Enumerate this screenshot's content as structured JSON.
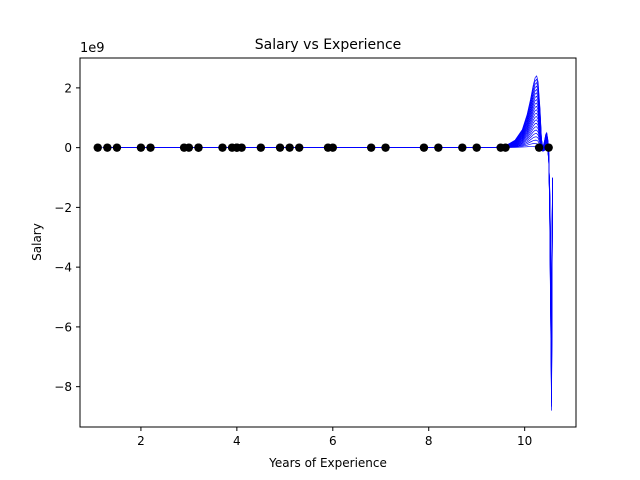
{
  "chart_data": {
    "type": "scatter",
    "title": "Salary vs Experience",
    "xlabel": "Years of Experience",
    "ylabel": "Salary",
    "y_offset_label": "1e9",
    "xlim": [
      0.73,
      11.07
    ],
    "ylim": [
      -9.35,
      3.0
    ],
    "xticks": [
      2,
      4,
      6,
      8,
      10
    ],
    "yticks": [
      2,
      0,
      -2,
      -4,
      -6,
      -8
    ],
    "ytick_labels": [
      "2",
      "0",
      "−2",
      "−4",
      "−6",
      "−8"
    ],
    "grid": false,
    "legend": "none",
    "colors": {
      "points": "#000000",
      "curves": "#0000ff"
    },
    "series": [
      {
        "kind": "points",
        "x": [
          1.1,
          1.3,
          1.5,
          2.0,
          2.2,
          2.9,
          3.0,
          3.2,
          3.2,
          3.7,
          3.9,
          4.0,
          4.0,
          4.1,
          4.5,
          4.9,
          5.1,
          5.3,
          5.9,
          6.0,
          6.8,
          7.1,
          7.9,
          8.2,
          8.7,
          9.0,
          9.5,
          9.6,
          10.3,
          10.5
        ],
        "y": [
          0,
          0,
          0,
          0,
          0,
          0,
          0,
          0,
          0,
          0,
          0,
          0,
          0,
          0,
          0,
          0,
          0,
          0,
          0,
          0,
          0,
          0,
          0,
          0,
          0,
          0,
          0,
          0,
          0,
          0
        ]
      },
      {
        "kind": "curve-family",
        "count": 22,
        "x": [
          1.2,
          9.4,
          9.6,
          9.8,
          9.95,
          10.05,
          10.12,
          10.18,
          10.22,
          10.25,
          10.28,
          10.32,
          10.35,
          10.38,
          10.41,
          10.44,
          10.46,
          10.48,
          10.5,
          10.52,
          10.54,
          10.56,
          10.58
        ],
        "envelope_max": [
          0,
          0.01,
          0.06,
          0.25,
          0.6,
          1.1,
          1.6,
          2.1,
          2.35,
          2.4,
          2.2,
          1.3,
          0.3,
          0,
          0.2,
          0.45,
          0.5,
          0.3,
          0,
          -2.0,
          -5.5,
          -8.8,
          -1.2
        ],
        "envelope_min": [
          0,
          0,
          0,
          0.01,
          0.02,
          0.03,
          0.04,
          0.04,
          0.03,
          0.02,
          0,
          -0.05,
          -0.1,
          -0.12,
          -0.1,
          -0.05,
          -0.02,
          -0.1,
          -0.4,
          -1.2,
          -3.0,
          -6.0,
          -1.0
        ]
      }
    ]
  }
}
